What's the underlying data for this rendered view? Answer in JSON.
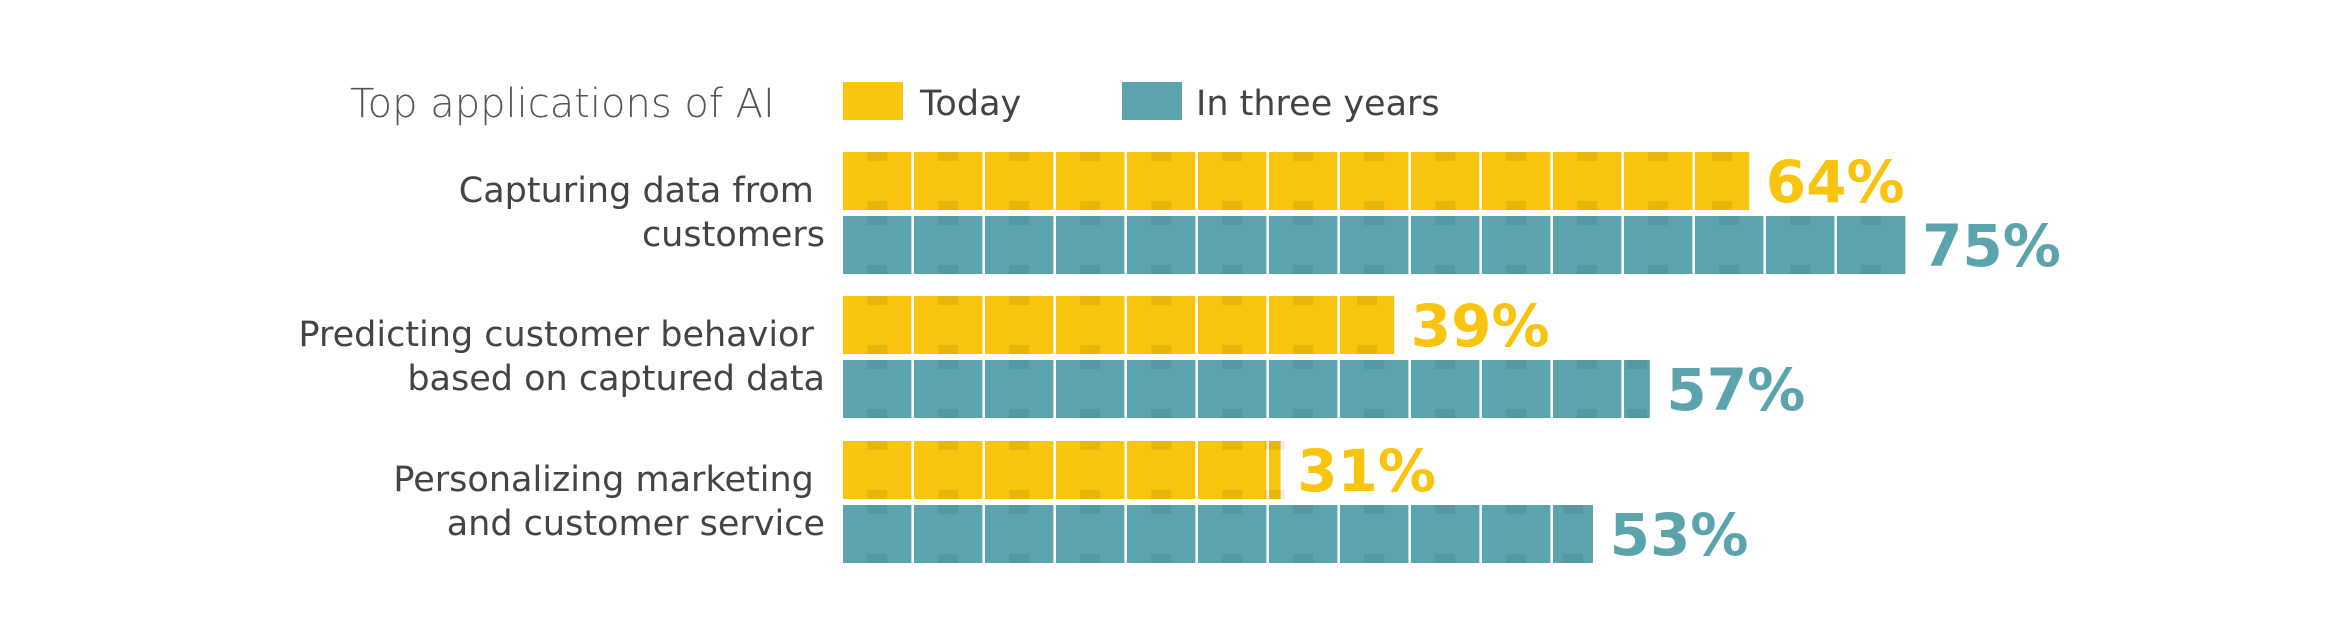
{
  "chart_data": {
    "type": "bar",
    "orientation": "horizontal",
    "title": "Top applications of AI",
    "categories": [
      [
        "Capturing data from",
        "customers"
      ],
      [
        "Predicting customer behavior",
        "based on captured data"
      ],
      [
        "Personalizing marketing",
        "and customer service"
      ]
    ],
    "series": [
      {
        "name": "Today",
        "color": "#F8C40E",
        "values": [
          64,
          39,
          31
        ],
        "labels": [
          "64%",
          "39%",
          "31%"
        ]
      },
      {
        "name": "In three years",
        "color": "#5BA4AE",
        "values": [
          75,
          57,
          53
        ],
        "labels": [
          "75%",
          "57%",
          "53%"
        ]
      }
    ],
    "unit_per_block": 5,
    "legend_placement": "top",
    "grid": false
  }
}
